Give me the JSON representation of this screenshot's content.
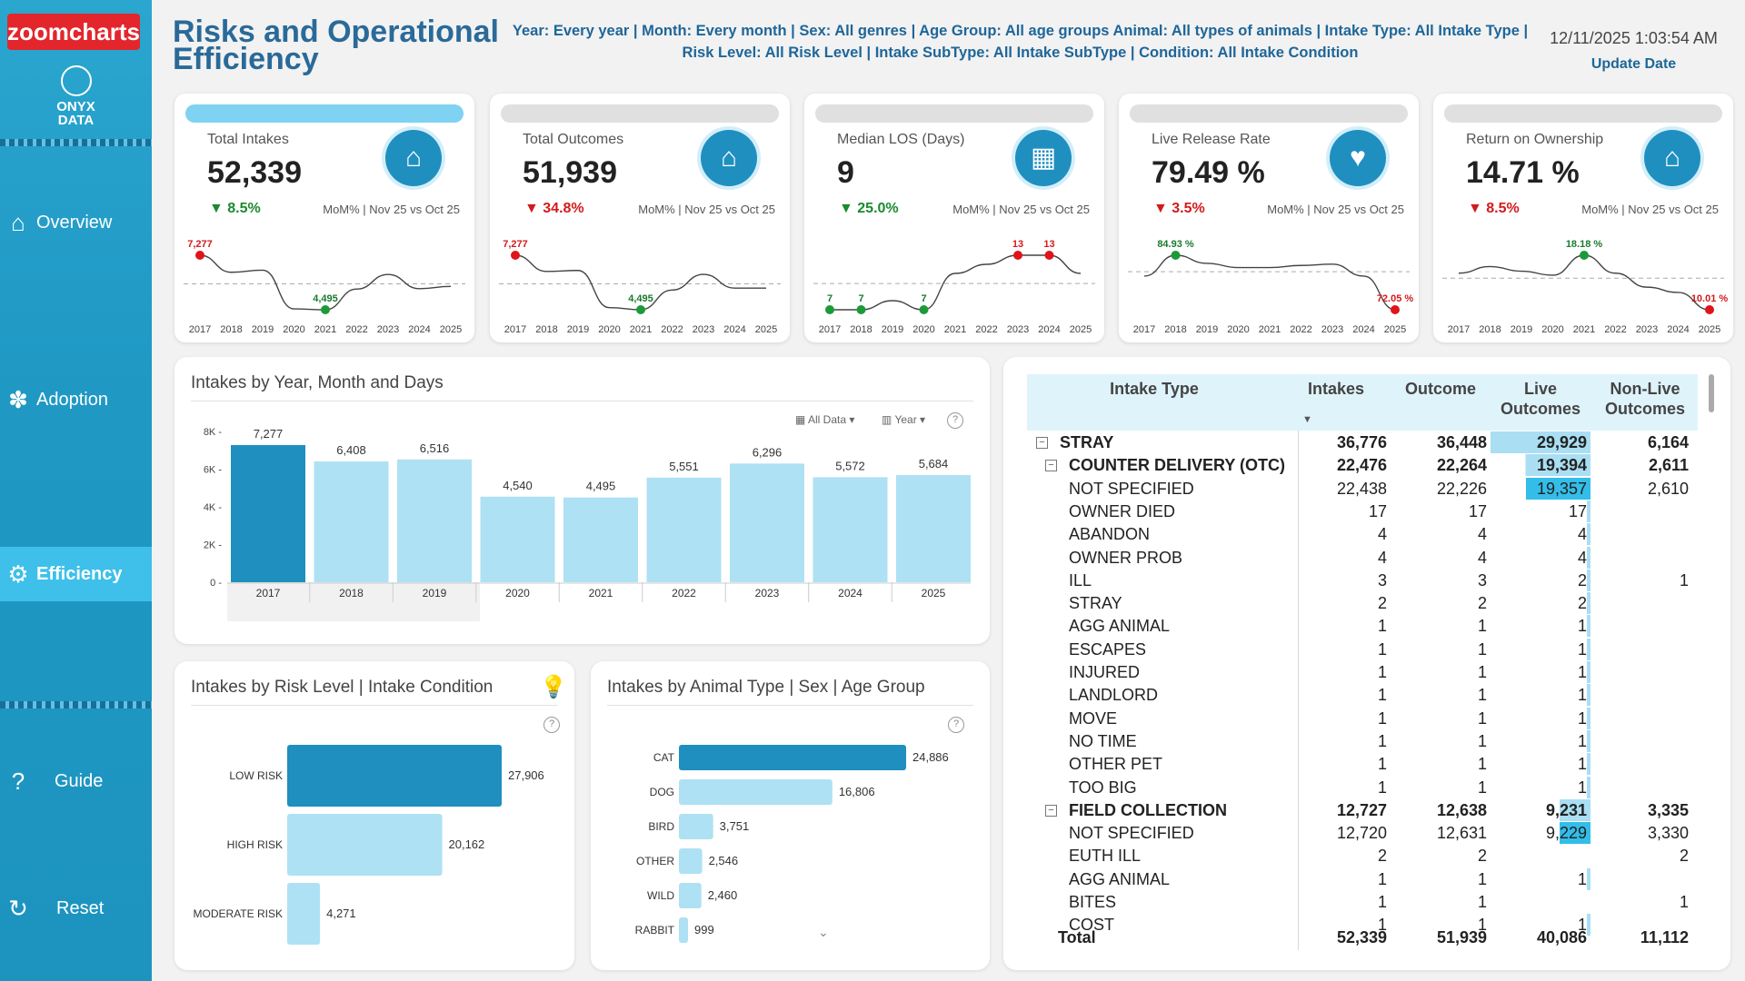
{
  "brand": {
    "zoomcharts": "zoomcharts",
    "onyx": [
      "ONYX",
      "DATA"
    ]
  },
  "nav": [
    {
      "label": "Overview",
      "icon": "home-icon"
    },
    {
      "label": "Adoption",
      "icon": "paw-icon"
    },
    {
      "label": "Efficiency",
      "icon": "gear-icon",
      "active": true
    },
    {
      "label": "Guide",
      "icon": "question-icon"
    },
    {
      "label": "Reset",
      "icon": "refresh-icon"
    }
  ],
  "header": {
    "title": "Risks and Operational Efficiency",
    "filters": "Year: Every year | Month: Every month | Sex: All genres | Age Group: All age groups Animal: All types of animals | Intake Type: All Intake Type | Risk Level: All Risk Level | Intake SubType: All Intake SubType | Condition: All Intake Condition",
    "datetime": "12/11/2025 1:03:54 AM",
    "update_label": "Update Date"
  },
  "kpis": [
    {
      "label": "Total Intakes",
      "value": "52,339",
      "change": "▼ 8.5%",
      "dir": "up",
      "mom": "MoM% | Nov 25 vs Oct 25",
      "icon": "house-icon",
      "active": true,
      "years": [
        "2017",
        "2018",
        "2019",
        "2020",
        "2021",
        "2022",
        "2023",
        "2024",
        "2025"
      ],
      "series": [
        7277,
        6408,
        6516,
        4540,
        4495,
        5551,
        6296,
        5572,
        5684
      ],
      "max_label": "7,277",
      "min_label": "4,495",
      "max_i": 0,
      "min_i": 4
    },
    {
      "label": "Total Outcomes",
      "value": "51,939",
      "change": "▼ 34.8%",
      "dir": "down",
      "mom": "MoM% | Nov 25 vs Oct 25",
      "icon": "house-paw-icon",
      "years": [
        "2017",
        "2018",
        "2019",
        "2020",
        "2021",
        "2022",
        "2023",
        "2024",
        "2025"
      ],
      "series": [
        7277,
        6450,
        6500,
        4600,
        4495,
        5500,
        6300,
        5600,
        5600
      ],
      "max_label": "7,277",
      "min_label": "4,495",
      "max_i": 0,
      "min_i": 4
    },
    {
      "label": "Median LOS (Days)",
      "value": "9",
      "change": "▼ 25.0%",
      "dir": "up",
      "mom": "MoM% | Nov 25 vs Oct 25",
      "icon": "calendar-icon",
      "years": [
        "2017",
        "2018",
        "2019",
        "2020",
        "2021",
        "2022",
        "2023",
        "2024",
        "2025"
      ],
      "series": [
        7,
        7,
        8,
        7,
        11,
        12,
        13,
        13,
        11
      ],
      "points": [
        {
          "i": 0,
          "t": "7",
          "c": "green"
        },
        {
          "i": 1,
          "t": "7",
          "c": "green"
        },
        {
          "i": 3,
          "t": "7",
          "c": "green"
        },
        {
          "i": 6,
          "t": "13",
          "c": "red"
        },
        {
          "i": 7,
          "t": "13",
          "c": "red"
        }
      ]
    },
    {
      "label": "Live Release Rate",
      "value": "79.49 %",
      "change": "▼ 3.5%",
      "dir": "down",
      "mom": "MoM% | Nov 25 vs Oct 25",
      "icon": "heart-paw-icon",
      "years": [
        "2017",
        "2018",
        "2019",
        "2020",
        "2021",
        "2022",
        "2023",
        "2024",
        "2025"
      ],
      "series": [
        80,
        84.9,
        83,
        82,
        82,
        82.5,
        82.8,
        80,
        72.1
      ],
      "max_label": "84.93 %",
      "min_label": "72.05 %",
      "max_i": 1,
      "min_i": 8
    },
    {
      "label": "Return on Ownership",
      "value": "14.71 %",
      "change": "▼ 8.5%",
      "dir": "down",
      "mom": "MoM% | Nov 25 vs Oct 25",
      "icon": "house-heart-icon",
      "years": [
        "2017",
        "2018",
        "2019",
        "2020",
        "2021",
        "2022",
        "2023",
        "2024",
        "2025"
      ],
      "series": [
        15.5,
        16.5,
        15.8,
        15.2,
        18.2,
        15.5,
        13.4,
        12.6,
        10.0
      ],
      "max_label": "18.18 %",
      "min_label": "10.01 %",
      "max_i": 4,
      "min_i": 8
    }
  ],
  "year_chart": {
    "title": "Intakes by Year, Month and Days",
    "ctrl_all": "All Data",
    "ctrl_year": "Year",
    "chart_data": {
      "type": "bar",
      "categories": [
        "2017",
        "2018",
        "2019",
        "2020",
        "2021",
        "2022",
        "2023",
        "2024",
        "2025"
      ],
      "values": [
        7277,
        6408,
        6516,
        4540,
        4495,
        5551,
        6296,
        5572,
        5684
      ],
      "labels": [
        "7,277",
        "6,408",
        "6,516",
        "4,540",
        "4,495",
        "5,551",
        "6,296",
        "5,572",
        "5,684"
      ],
      "yticks": [
        "0",
        "2K",
        "4K",
        "6K",
        "8K"
      ],
      "ylim": [
        0,
        8000
      ]
    }
  },
  "risk_chart": {
    "title": "Intakes by Risk Level | Intake Condition",
    "chart_data": {
      "type": "bar",
      "categories": [
        "LOW RISK",
        "HIGH RISK",
        "MODERATE RISK"
      ],
      "values": [
        27906,
        20162,
        4271
      ],
      "labels": [
        "27,906",
        "20,162",
        "4,271"
      ]
    }
  },
  "animal_chart": {
    "title": "Intakes by Animal Type | Sex | Age Group",
    "chart_data": {
      "type": "bar",
      "categories": [
        "CAT",
        "DOG",
        "BIRD",
        "OTHER",
        "WILD",
        "RABBIT"
      ],
      "values": [
        24886,
        16806,
        3751,
        2546,
        2460,
        999
      ],
      "labels": [
        "24,886",
        "16,806",
        "3,751",
        "2,546",
        "2,460",
        "999"
      ]
    }
  },
  "table": {
    "headers": [
      "Intake Type",
      "Intakes",
      "Outcome",
      "Live Outcomes",
      "Non-Live Outcomes"
    ],
    "live_max": 29929,
    "rows": [
      {
        "name": "STRAY",
        "level": 0,
        "exp": "⊟",
        "bold": true,
        "i": "36,776",
        "o": "36,448",
        "l": "29,929",
        "n": "6,164",
        "lv": 29929
      },
      {
        "name": "COUNTER DELIVERY (OTC)",
        "level": 1,
        "exp": "⊟",
        "bold": true,
        "i": "22,476",
        "o": "22,264",
        "l": "19,394",
        "n": "2,611",
        "lv": 19394
      },
      {
        "name": "NOT SPECIFIED",
        "level": 2,
        "i": "22,438",
        "o": "22,226",
        "l": "19,357",
        "n": "2,610",
        "lv": 19357,
        "hl": true
      },
      {
        "name": "OWNER DIED",
        "level": 2,
        "i": "17",
        "o": "17",
        "l": "17",
        "n": "",
        "lv": 17
      },
      {
        "name": "ABANDON",
        "level": 2,
        "i": "4",
        "o": "4",
        "l": "4",
        "n": "",
        "lv": 4
      },
      {
        "name": "OWNER PROB",
        "level": 2,
        "i": "4",
        "o": "4",
        "l": "4",
        "n": "",
        "lv": 4
      },
      {
        "name": "ILL",
        "level": 2,
        "i": "3",
        "o": "3",
        "l": "2",
        "n": "1",
        "lv": 2
      },
      {
        "name": "STRAY",
        "level": 2,
        "i": "2",
        "o": "2",
        "l": "2",
        "n": "",
        "lv": 2
      },
      {
        "name": "AGG ANIMAL",
        "level": 2,
        "i": "1",
        "o": "1",
        "l": "1",
        "n": "",
        "lv": 1
      },
      {
        "name": "ESCAPES",
        "level": 2,
        "i": "1",
        "o": "1",
        "l": "1",
        "n": "",
        "lv": 1
      },
      {
        "name": "INJURED",
        "level": 2,
        "i": "1",
        "o": "1",
        "l": "1",
        "n": "",
        "lv": 1
      },
      {
        "name": "LANDLORD",
        "level": 2,
        "i": "1",
        "o": "1",
        "l": "1",
        "n": "",
        "lv": 1
      },
      {
        "name": "MOVE",
        "level": 2,
        "i": "1",
        "o": "1",
        "l": "1",
        "n": "",
        "lv": 1
      },
      {
        "name": "NO TIME",
        "level": 2,
        "i": "1",
        "o": "1",
        "l": "1",
        "n": "",
        "lv": 1
      },
      {
        "name": "OTHER PET",
        "level": 2,
        "i": "1",
        "o": "1",
        "l": "1",
        "n": "",
        "lv": 1
      },
      {
        "name": "TOO BIG",
        "level": 2,
        "i": "1",
        "o": "1",
        "l": "1",
        "n": "",
        "lv": 1
      },
      {
        "name": "FIELD COLLECTION",
        "level": 1,
        "exp": "⊟",
        "bold": true,
        "i": "12,727",
        "o": "12,638",
        "l": "9,231",
        "n": "3,335",
        "lv": 9231
      },
      {
        "name": "NOT SPECIFIED",
        "level": 2,
        "i": "12,720",
        "o": "12,631",
        "l": "9,229",
        "n": "3,330",
        "lv": 9229,
        "hl": true
      },
      {
        "name": "EUTH ILL",
        "level": 2,
        "i": "2",
        "o": "2",
        "l": "",
        "n": "2",
        "lv": 0
      },
      {
        "name": "AGG ANIMAL",
        "level": 2,
        "i": "1",
        "o": "1",
        "l": "1",
        "n": "",
        "lv": 1
      },
      {
        "name": "BITES",
        "level": 2,
        "i": "1",
        "o": "1",
        "l": "",
        "n": "1",
        "lv": 0
      },
      {
        "name": "COST",
        "level": 2,
        "i": "1",
        "o": "1",
        "l": "1",
        "n": "",
        "lv": 1
      }
    ],
    "total": {
      "name": "Total",
      "i": "52,339",
      "o": "51,939",
      "l": "40,086",
      "n": "11,112"
    }
  }
}
